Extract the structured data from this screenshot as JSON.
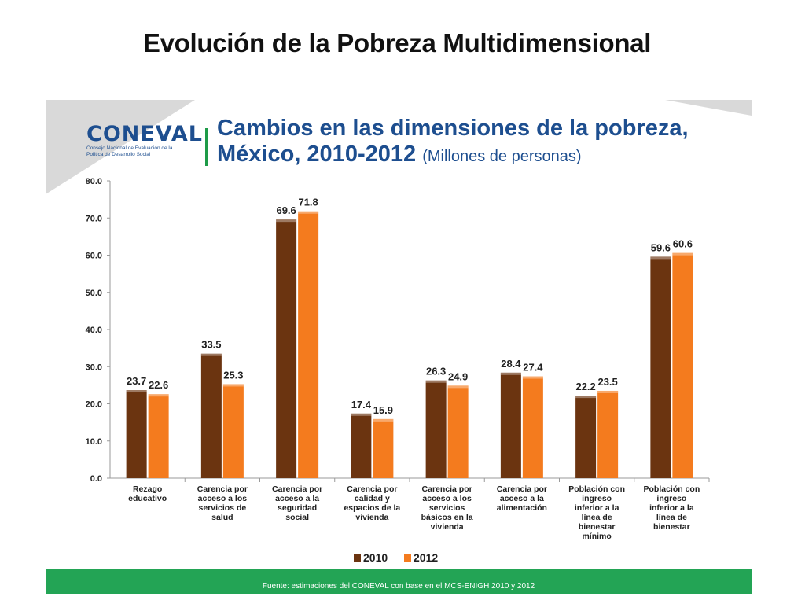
{
  "slide_title": "Evolución de la Pobreza Multidimensional",
  "logo": {
    "name": "CONEVAL",
    "subtitle": "Consejo Nacional de Evaluación de la Política de Desarrollo Social"
  },
  "source": "Fuente: estimaciones del CONEVAL con base en el MCS-ENIGH 2010 y 2012",
  "colors": {
    "series_2010": "#6b3410",
    "series_2012": "#f47b1e",
    "title": "#1d4e8f",
    "accent_green": "#23a455"
  },
  "chart_data": {
    "type": "bar",
    "title": "Cambios en las dimensiones de la pobreza,",
    "title_line2": "México, 2010-2012",
    "title_unit": "(Millones de personas)",
    "ylim": [
      0,
      80
    ],
    "yticks": [
      "0.0",
      "10.0",
      "20.0",
      "30.0",
      "40.0",
      "50.0",
      "60.0",
      "70.0",
      "80.0"
    ],
    "categories": [
      [
        "Rezago",
        "educativo"
      ],
      [
        "Carencia por",
        "acceso a los",
        "servicios de",
        "salud"
      ],
      [
        "Carencia por",
        "acceso a la",
        "seguridad",
        "social"
      ],
      [
        "Carencia por",
        "calidad y",
        "espacios de la",
        "vivienda"
      ],
      [
        "Carencia por",
        "acceso a los",
        "servicios",
        "básicos en la",
        "vivienda"
      ],
      [
        "Carencia por",
        "acceso a la",
        "alimentación"
      ],
      [
        "Población con",
        "ingreso",
        "inferior a la",
        "línea de",
        "bienestar",
        "mínimo"
      ],
      [
        "Población con",
        "ingreso",
        "inferior a la",
        "línea de",
        "bienestar"
      ]
    ],
    "series": [
      {
        "name": "2010",
        "values": [
          23.7,
          33.5,
          69.6,
          17.4,
          26.3,
          28.4,
          22.2,
          59.6
        ]
      },
      {
        "name": "2012",
        "values": [
          22.6,
          25.3,
          71.8,
          15.9,
          24.9,
          27.4,
          23.5,
          60.6
        ]
      }
    ],
    "legend": "bottom-center"
  }
}
